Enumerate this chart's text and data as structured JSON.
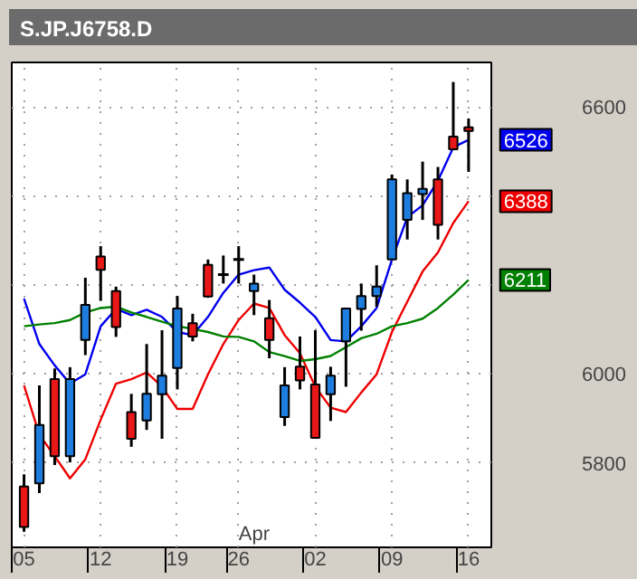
{
  "chart_data": {
    "type": "candlestick",
    "title": "S.JP.J6758.D",
    "categories": [
      "05",
      null,
      null,
      null,
      null,
      "12",
      null,
      null,
      null,
      null,
      "19",
      null,
      null,
      null,
      "26",
      null,
      null,
      null,
      null,
      "02",
      null,
      null,
      null,
      null,
      "09",
      null,
      null,
      null,
      null,
      "16"
    ],
    "ohlc": [
      [
        5747,
        5774,
        5645,
        5656
      ],
      [
        5754,
        5974,
        5732,
        5885
      ],
      [
        5988,
        6012,
        5795,
        5815
      ],
      [
        5815,
        6015,
        5801,
        5988
      ],
      [
        6076,
        6216,
        6042,
        6155
      ],
      [
        6264,
        6287,
        6164,
        6234
      ],
      [
        6186,
        6196,
        6083,
        6105
      ],
      [
        5914,
        5955,
        5836,
        5854
      ],
      [
        5895,
        6067,
        5874,
        5955
      ],
      [
        5954,
        6098,
        5854,
        5996
      ],
      [
        6013,
        6175,
        5965,
        6147
      ],
      [
        6114,
        6135,
        6073,
        6084
      ],
      [
        6245,
        6257,
        6171,
        6174
      ],
      [
        6223,
        6266,
        6203,
        6223
      ],
      [
        6257,
        6287,
        6203,
        6257
      ],
      [
        6186,
        6223,
        6132,
        6203
      ],
      [
        6125,
        6166,
        6035,
        6076
      ],
      [
        5903,
        6015,
        5883,
        5974
      ],
      [
        6016,
        6084,
        5965,
        5985
      ],
      [
        5976,
        6098,
        5856,
        5856
      ],
      [
        5954,
        6016,
        5894,
        5996
      ],
      [
        6073,
        6147,
        5971,
        6147
      ],
      [
        6146,
        6203,
        6097,
        6175
      ],
      [
        6175,
        6244,
        6151,
        6196
      ],
      [
        6257,
        6448,
        6257,
        6437
      ],
      [
        6346,
        6437,
        6302,
        6406
      ],
      [
        6404,
        6477,
        6346,
        6416
      ],
      [
        6437,
        6465,
        6302,
        6335
      ],
      [
        6533,
        6656,
        6505,
        6505
      ],
      [
        6554,
        6574,
        6454,
        6546
      ]
    ],
    "colors": [
      "#e81818",
      "#1e7ee0",
      "#e81818",
      "#1e7ee0",
      "#1e7ee0",
      "#e81818",
      "#e81818",
      "#e81818",
      "#1e7ee0",
      "#1e7ee0",
      "#1e7ee0",
      "#e81818",
      "#e81818",
      "#000000",
      "#000000",
      "#1e7ee0",
      "#e81818",
      "#1e7ee0",
      "#e81818",
      "#e81818",
      "#1e7ee0",
      "#1e7ee0",
      "#1e7ee0",
      "#1e7ee0",
      "#1e7ee0",
      "#1e7ee0",
      "#1e7ee0",
      "#e81818",
      "#e81818",
      "#e81818"
    ],
    "series": [
      {
        "type": "line",
        "color": "#0000ee",
        "values": [
          6169,
          6067,
          6019,
          5978,
          5999,
          6107,
          6146,
          6132,
          6144,
          6128,
          6094,
          6087,
          6128,
          6182,
          6223,
          6233,
          6239,
          6189,
          6160,
          6128,
          6076,
          6073,
          6107,
          6148,
          6257,
          6352,
          6379,
          6434,
          6509,
          6526
        ]
      },
      {
        "type": "line",
        "color": "#ee0000",
        "values": [
          5974,
          5863,
          5815,
          5765,
          5808,
          5897,
          5978,
          5988,
          6003,
          5971,
          5921,
          5921,
          5999,
          6067,
          6121,
          6158,
          6148,
          6087,
          6046,
          5971,
          5924,
          5914,
          5958,
          5999,
          6094,
          6162,
          6230,
          6273,
          6339,
          6388
        ]
      },
      {
        "type": "line",
        "color": "#008000",
        "values": [
          6107,
          6111,
          6114,
          6121,
          6138,
          6148,
          6151,
          6138,
          6128,
          6117,
          6107,
          6101,
          6094,
          6084,
          6083,
          6073,
          6049,
          6040,
          6029,
          6033,
          6040,
          6060,
          6080,
          6090,
          6107,
          6114,
          6124,
          6148,
          6178,
          6211
        ]
      }
    ],
    "ylim": [
      5610,
      6700
    ],
    "yticks": [
      5800,
      6000,
      {
        "value": 6200,
        "label": null
      },
      {
        "value": 6400,
        "label": null
      },
      6600
    ],
    "grid": true,
    "annotations": [
      {
        "text": "6526",
        "x": "16",
        "y": 6526
      },
      {
        "text": "6388",
        "x": "16",
        "y": 6388
      },
      {
        "text": "6211",
        "x": "16",
        "y": 6211
      },
      "Apr"
    ]
  }
}
